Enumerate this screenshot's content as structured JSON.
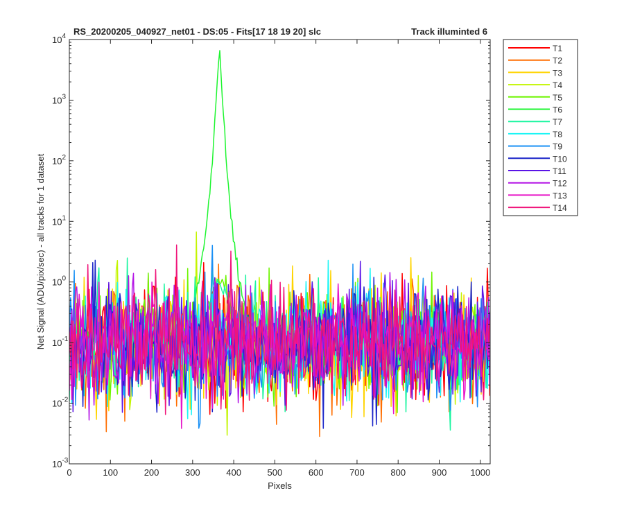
{
  "figure": {
    "title_left": "RS_20200205_040927_net01 - DS:05 - Fits[17   18   19   20]   slc",
    "title_right": "Track illuminted 6"
  },
  "chart_data": {
    "type": "line",
    "xlabel": "Pixels",
    "ylabel": "Net Signal (ADU/pix/sec) - all tracks for 1 dataset",
    "xlim": [
      0,
      1024
    ],
    "ylim": [
      0.001,
      10000
    ],
    "yscale": "log",
    "grid": false,
    "legend_position": "outside-right",
    "x_ticks": [
      0,
      100,
      200,
      300,
      400,
      500,
      600,
      700,
      800,
      900,
      1000
    ],
    "x_tick_labels": [
      "0",
      "100",
      "200",
      "300",
      "400",
      "500",
      "600",
      "700",
      "800",
      "900",
      "1000"
    ],
    "y_ticks": [
      0.001,
      0.01,
      0.1,
      1,
      10,
      100,
      1000,
      10000
    ],
    "y_tick_exponents": [
      "-3",
      "-2",
      "-1",
      "0",
      "1",
      "2",
      "3",
      "4"
    ],
    "y_tick_base": "10",
    "illuminated_track": "T6",
    "peak": {
      "x": 365,
      "y": 7000
    },
    "noise_level": 0.1,
    "series": [
      {
        "name": "T1",
        "color": "#ff0000"
      },
      {
        "name": "T2",
        "color": "#ff6e00"
      },
      {
        "name": "T3",
        "color": "#ffd400"
      },
      {
        "name": "T4",
        "color": "#c3f500"
      },
      {
        "name": "T5",
        "color": "#6df500"
      },
      {
        "name": "T6",
        "color": "#1ef530"
      },
      {
        "name": "T7",
        "color": "#1af5a0"
      },
      {
        "name": "T8",
        "color": "#1af5f5"
      },
      {
        "name": "T9",
        "color": "#1a90f5"
      },
      {
        "name": "T10",
        "color": "#1a24c8"
      },
      {
        "name": "T11",
        "color": "#5a14e6"
      },
      {
        "name": "T12",
        "color": "#b414e6"
      },
      {
        "name": "T13",
        "color": "#e614c8"
      },
      {
        "name": "T14",
        "color": "#f0147a"
      }
    ]
  }
}
